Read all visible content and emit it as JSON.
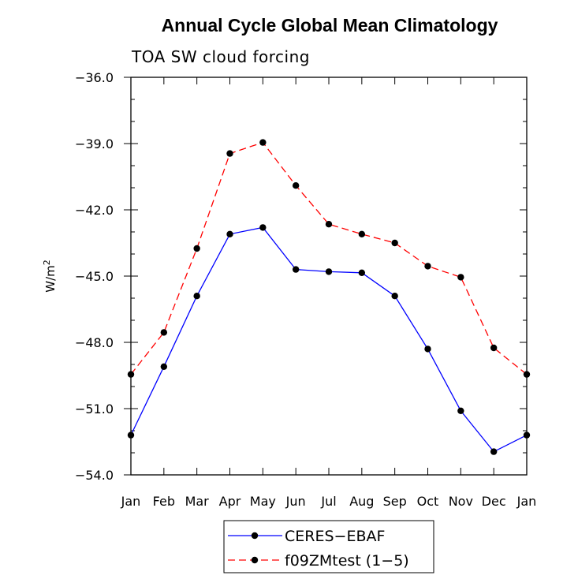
{
  "chart_data": {
    "type": "line",
    "title": "Annual Cycle Global Mean Climatology",
    "subtitle": "TOA SW cloud forcing",
    "ylabel_base": "W/m",
    "ylabel_sup": "2",
    "xlabel": "",
    "categories": [
      "Jan",
      "Feb",
      "Mar",
      "Apr",
      "May",
      "Jun",
      "Jul",
      "Aug",
      "Sep",
      "Oct",
      "Nov",
      "Dec",
      "Jan"
    ],
    "ylim": [
      -54.0,
      -36.0
    ],
    "yticks": [
      -54.0,
      -51.0,
      -48.0,
      -45.0,
      -42.0,
      -39.0,
      -36.0
    ],
    "ytick_labels": [
      "−54.0",
      "−51.0",
      "−48.0",
      "−45.0",
      "−42.0",
      "−39.0",
      "−36.0"
    ],
    "grid": false,
    "legend_position": "bottom-center",
    "series": [
      {
        "name": "CERES−EBAF",
        "color": "#0000ff",
        "dash": "solid",
        "marker": "circle",
        "values": [
          -52.2,
          -49.1,
          -45.9,
          -43.1,
          -42.8,
          -44.7,
          -44.8,
          -44.85,
          -45.9,
          -48.3,
          -51.1,
          -52.95,
          -52.2
        ]
      },
      {
        "name": "f09ZMtest (1−5)",
        "color": "#ff0000",
        "dash": "dashed",
        "marker": "circle",
        "values": [
          -49.45,
          -47.55,
          -43.75,
          -39.45,
          -38.95,
          -40.9,
          -42.65,
          -43.1,
          -43.5,
          -44.55,
          -45.05,
          -48.25,
          -49.45
        ]
      }
    ]
  }
}
